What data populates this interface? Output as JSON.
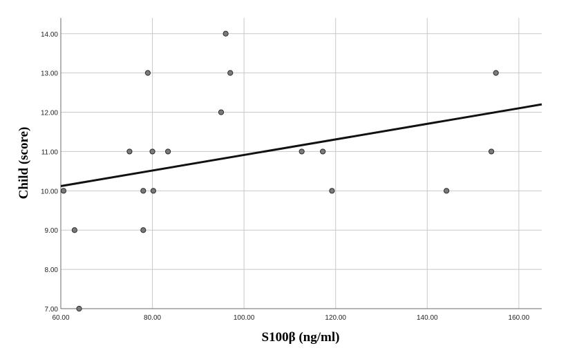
{
  "chart_data": {
    "type": "scatter",
    "xlabel": "S100β (ng/ml)",
    "ylabel": "Child (score)",
    "xlim": [
      60,
      165
    ],
    "ylim": [
      7,
      14.4
    ],
    "x_ticks": [
      60,
      80,
      100,
      120,
      140,
      160
    ],
    "y_ticks": [
      7,
      8,
      9,
      10,
      11,
      12,
      13,
      14
    ],
    "x_tick_labels": [
      "60.00",
      "80.00",
      "100.00",
      "120.00",
      "140.00",
      "160.00"
    ],
    "y_tick_labels": [
      "7.00",
      "8.00",
      "9.00",
      "10.00",
      "11.00",
      "12.00",
      "13.00",
      "14.00"
    ],
    "grid": true,
    "points": [
      {
        "x": 60.6,
        "y": 10
      },
      {
        "x": 63.0,
        "y": 9
      },
      {
        "x": 64.0,
        "y": 7
      },
      {
        "x": 75.0,
        "y": 11
      },
      {
        "x": 78.0,
        "y": 10
      },
      {
        "x": 78.0,
        "y": 9
      },
      {
        "x": 79.0,
        "y": 13
      },
      {
        "x": 80.0,
        "y": 11
      },
      {
        "x": 80.2,
        "y": 10
      },
      {
        "x": 83.4,
        "y": 11
      },
      {
        "x": 95.0,
        "y": 12
      },
      {
        "x": 96.0,
        "y": 14
      },
      {
        "x": 97.0,
        "y": 13
      },
      {
        "x": 112.6,
        "y": 11
      },
      {
        "x": 117.2,
        "y": 11
      },
      {
        "x": 119.2,
        "y": 10
      },
      {
        "x": 144.2,
        "y": 10
      },
      {
        "x": 154.0,
        "y": 11
      },
      {
        "x": 155.0,
        "y": 13
      }
    ],
    "fit_line": {
      "x": [
        60,
        165
      ],
      "y": [
        10.12,
        12.2
      ]
    }
  }
}
